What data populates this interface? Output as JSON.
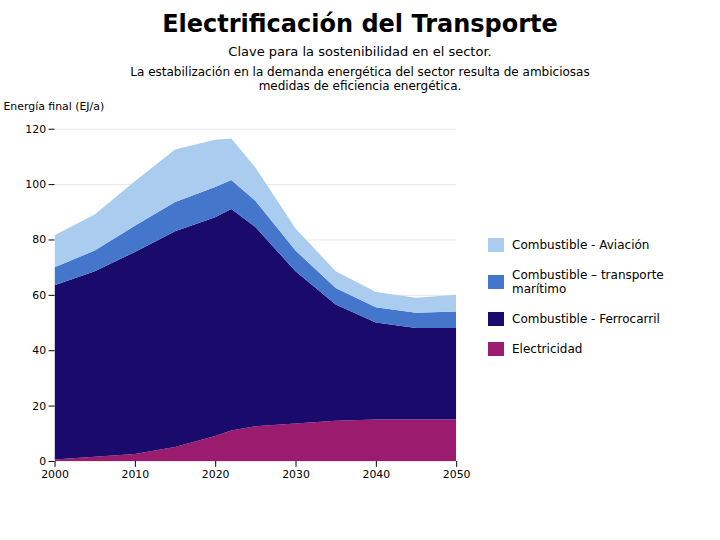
{
  "chart_data": {
    "type": "area",
    "stacked": true,
    "title": "Electrificación del Transporte",
    "subtitle": "Clave para la sostenibilidad en el sector.",
    "description": "La estabilización en la demanda energética del sector resulta de ambiciosas\nmedidas de eficiencia energética.",
    "ylabel": "Energía final (EJ/a)",
    "x": [
      2000,
      2005,
      2010,
      2015,
      2020,
      2022,
      2025,
      2030,
      2035,
      2040,
      2045,
      2050
    ],
    "series": [
      {
        "name": "Electricidad",
        "color": "#9B1B6E",
        "values": [
          0.5,
          1.5,
          2.5,
          5.0,
          9.0,
          11.0,
          12.5,
          13.5,
          14.5,
          15.0,
          15.0,
          15.0
        ]
      },
      {
        "name": "Combustible - Ferrocarril",
        "color": "#1A0A6B",
        "values": [
          63.0,
          67.0,
          73.0,
          78.0,
          79.0,
          80.0,
          72.0,
          55.0,
          42.0,
          35.0,
          33.0,
          33.0
        ]
      },
      {
        "name": "Combustible – transporte marítimo",
        "color": "#4477CC",
        "values": [
          6.5,
          7.5,
          9.5,
          10.5,
          11.0,
          10.5,
          9.5,
          7.5,
          6.0,
          5.5,
          5.5,
          6.0
        ]
      },
      {
        "name": "Combustible - Aviación",
        "color": "#AACCEE",
        "values": [
          11.5,
          13.0,
          16.0,
          19.0,
          17.0,
          15.0,
          12.0,
          8.0,
          6.0,
          5.5,
          5.5,
          6.0
        ]
      }
    ],
    "xlim": [
      2000,
      2050
    ],
    "xticks": [
      2000,
      2010,
      2020,
      2030,
      2040,
      2050
    ],
    "ylim": [
      0,
      120
    ],
    "yticks": [
      0,
      20,
      40,
      60,
      80,
      100,
      120
    ],
    "grid": true,
    "legend": "right"
  }
}
